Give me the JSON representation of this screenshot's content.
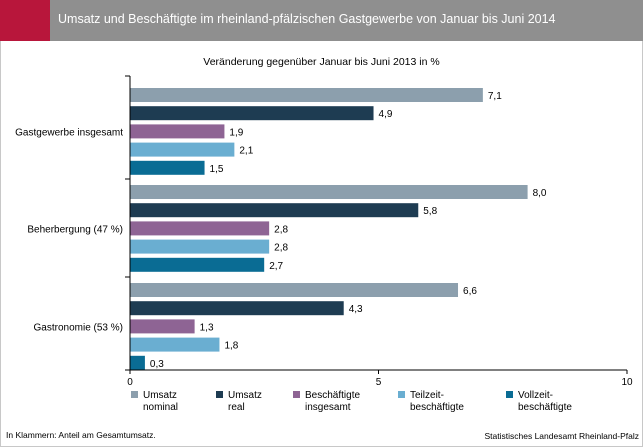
{
  "header": {
    "title": "Umsatz und Beschäftigte im rheinland-pfälzischen Gastgewerbe von Januar bis Juni 2014"
  },
  "chart_data": {
    "type": "bar",
    "orientation": "horizontal",
    "subtitle": "Veränderung gegenüber Januar bis Juni 2013 in %",
    "categories": [
      "Gastgewerbe insgesamt",
      "Beherbergung (47 %)",
      "Gastronomie (53 %)"
    ],
    "series": [
      {
        "name": "Umsatz nominal",
        "legend_lines": [
          "Umsatz",
          "nominal"
        ],
        "color": "#8c9fad",
        "values": [
          7.1,
          8.0,
          6.6
        ],
        "labels": [
          "7,1",
          "8,0",
          "6,6"
        ]
      },
      {
        "name": "Umsatz real",
        "legend_lines": [
          "Umsatz",
          "real"
        ],
        "color": "#1e3c52",
        "values": [
          4.9,
          5.8,
          4.3
        ],
        "labels": [
          "4,9",
          "5,8",
          "4,3"
        ]
      },
      {
        "name": "Beschäftigte insgesamt",
        "legend_lines": [
          "Beschäftigte",
          "insgesamt"
        ],
        "color": "#8e6494",
        "values": [
          1.9,
          2.8,
          1.3
        ],
        "labels": [
          "1,9",
          "2,8",
          "1,3"
        ]
      },
      {
        "name": "Teilzeitbeschäftigte",
        "legend_lines": [
          "Teilzeit-",
          "beschäftigte"
        ],
        "color": "#6aaed1",
        "values": [
          2.1,
          2.8,
          1.8
        ],
        "labels": [
          "2,1",
          "2,8",
          "1,8"
        ]
      },
      {
        "name": "Vollzeitbeschäftigte",
        "legend_lines": [
          "Vollzeit-",
          "beschäftigte"
        ],
        "color": "#0a6c94",
        "values": [
          1.5,
          2.7,
          0.3
        ],
        "labels": [
          "1,5",
          "2,7",
          "0,3"
        ]
      }
    ],
    "xlim": [
      0,
      10
    ],
    "xticks": [
      0,
      5,
      10
    ],
    "xtick_labels": [
      "0",
      "5",
      "10"
    ],
    "grid": false,
    "legend_position": "bottom"
  },
  "footnote": "In Klammern: Anteil am Gesamtumsatz.",
  "source": "Statistisches Landesamt Rheinland-Pfalz"
}
